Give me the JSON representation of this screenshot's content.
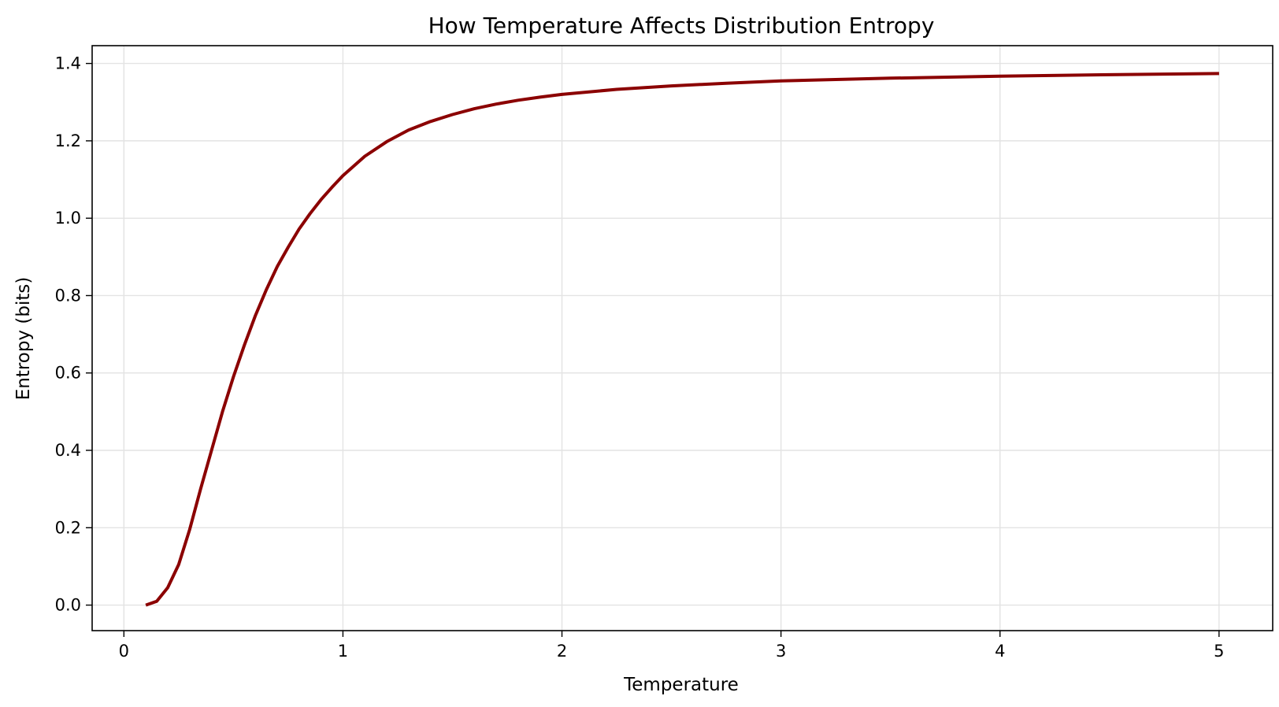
{
  "chart_data": {
    "type": "line",
    "title": "How Temperature Affects Distribution Entropy",
    "xlabel": "Temperature",
    "ylabel": "Entropy (bits)",
    "xlim": [
      -0.145,
      5.245
    ],
    "ylim": [
      -0.066,
      1.446
    ],
    "xticks": [
      0,
      1,
      2,
      3,
      4,
      5
    ],
    "xtick_labels": [
      "0",
      "1",
      "2",
      "3",
      "4",
      "5"
    ],
    "yticks": [
      0.0,
      0.2,
      0.4,
      0.6,
      0.8,
      1.0,
      1.2,
      1.4
    ],
    "ytick_labels": [
      "0.0",
      "0.2",
      "0.4",
      "0.6",
      "0.8",
      "1.0",
      "1.2",
      "1.4"
    ],
    "grid": true,
    "line_color": "#8b0000",
    "series": [
      {
        "x": [
          0.1,
          0.15,
          0.2,
          0.25,
          0.3,
          0.35,
          0.4,
          0.45,
          0.5,
          0.55,
          0.6,
          0.65,
          0.7,
          0.75,
          0.8,
          0.85,
          0.9,
          0.95,
          1.0,
          1.1,
          1.2,
          1.3,
          1.4,
          1.5,
          1.6,
          1.7,
          1.8,
          1.9,
          2.0,
          2.25,
          2.5,
          2.75,
          3.0,
          3.5,
          4.0,
          4.5,
          5.0
        ],
        "values": [
          0.0,
          0.01,
          0.045,
          0.105,
          0.195,
          0.3,
          0.4,
          0.5,
          0.59,
          0.672,
          0.748,
          0.815,
          0.875,
          0.925,
          0.972,
          1.012,
          1.048,
          1.08,
          1.11,
          1.16,
          1.198,
          1.228,
          1.25,
          1.268,
          1.283,
          1.295,
          1.305,
          1.313,
          1.32,
          1.333,
          1.342,
          1.349,
          1.355,
          1.362,
          1.367,
          1.371,
          1.374
        ]
      }
    ]
  }
}
